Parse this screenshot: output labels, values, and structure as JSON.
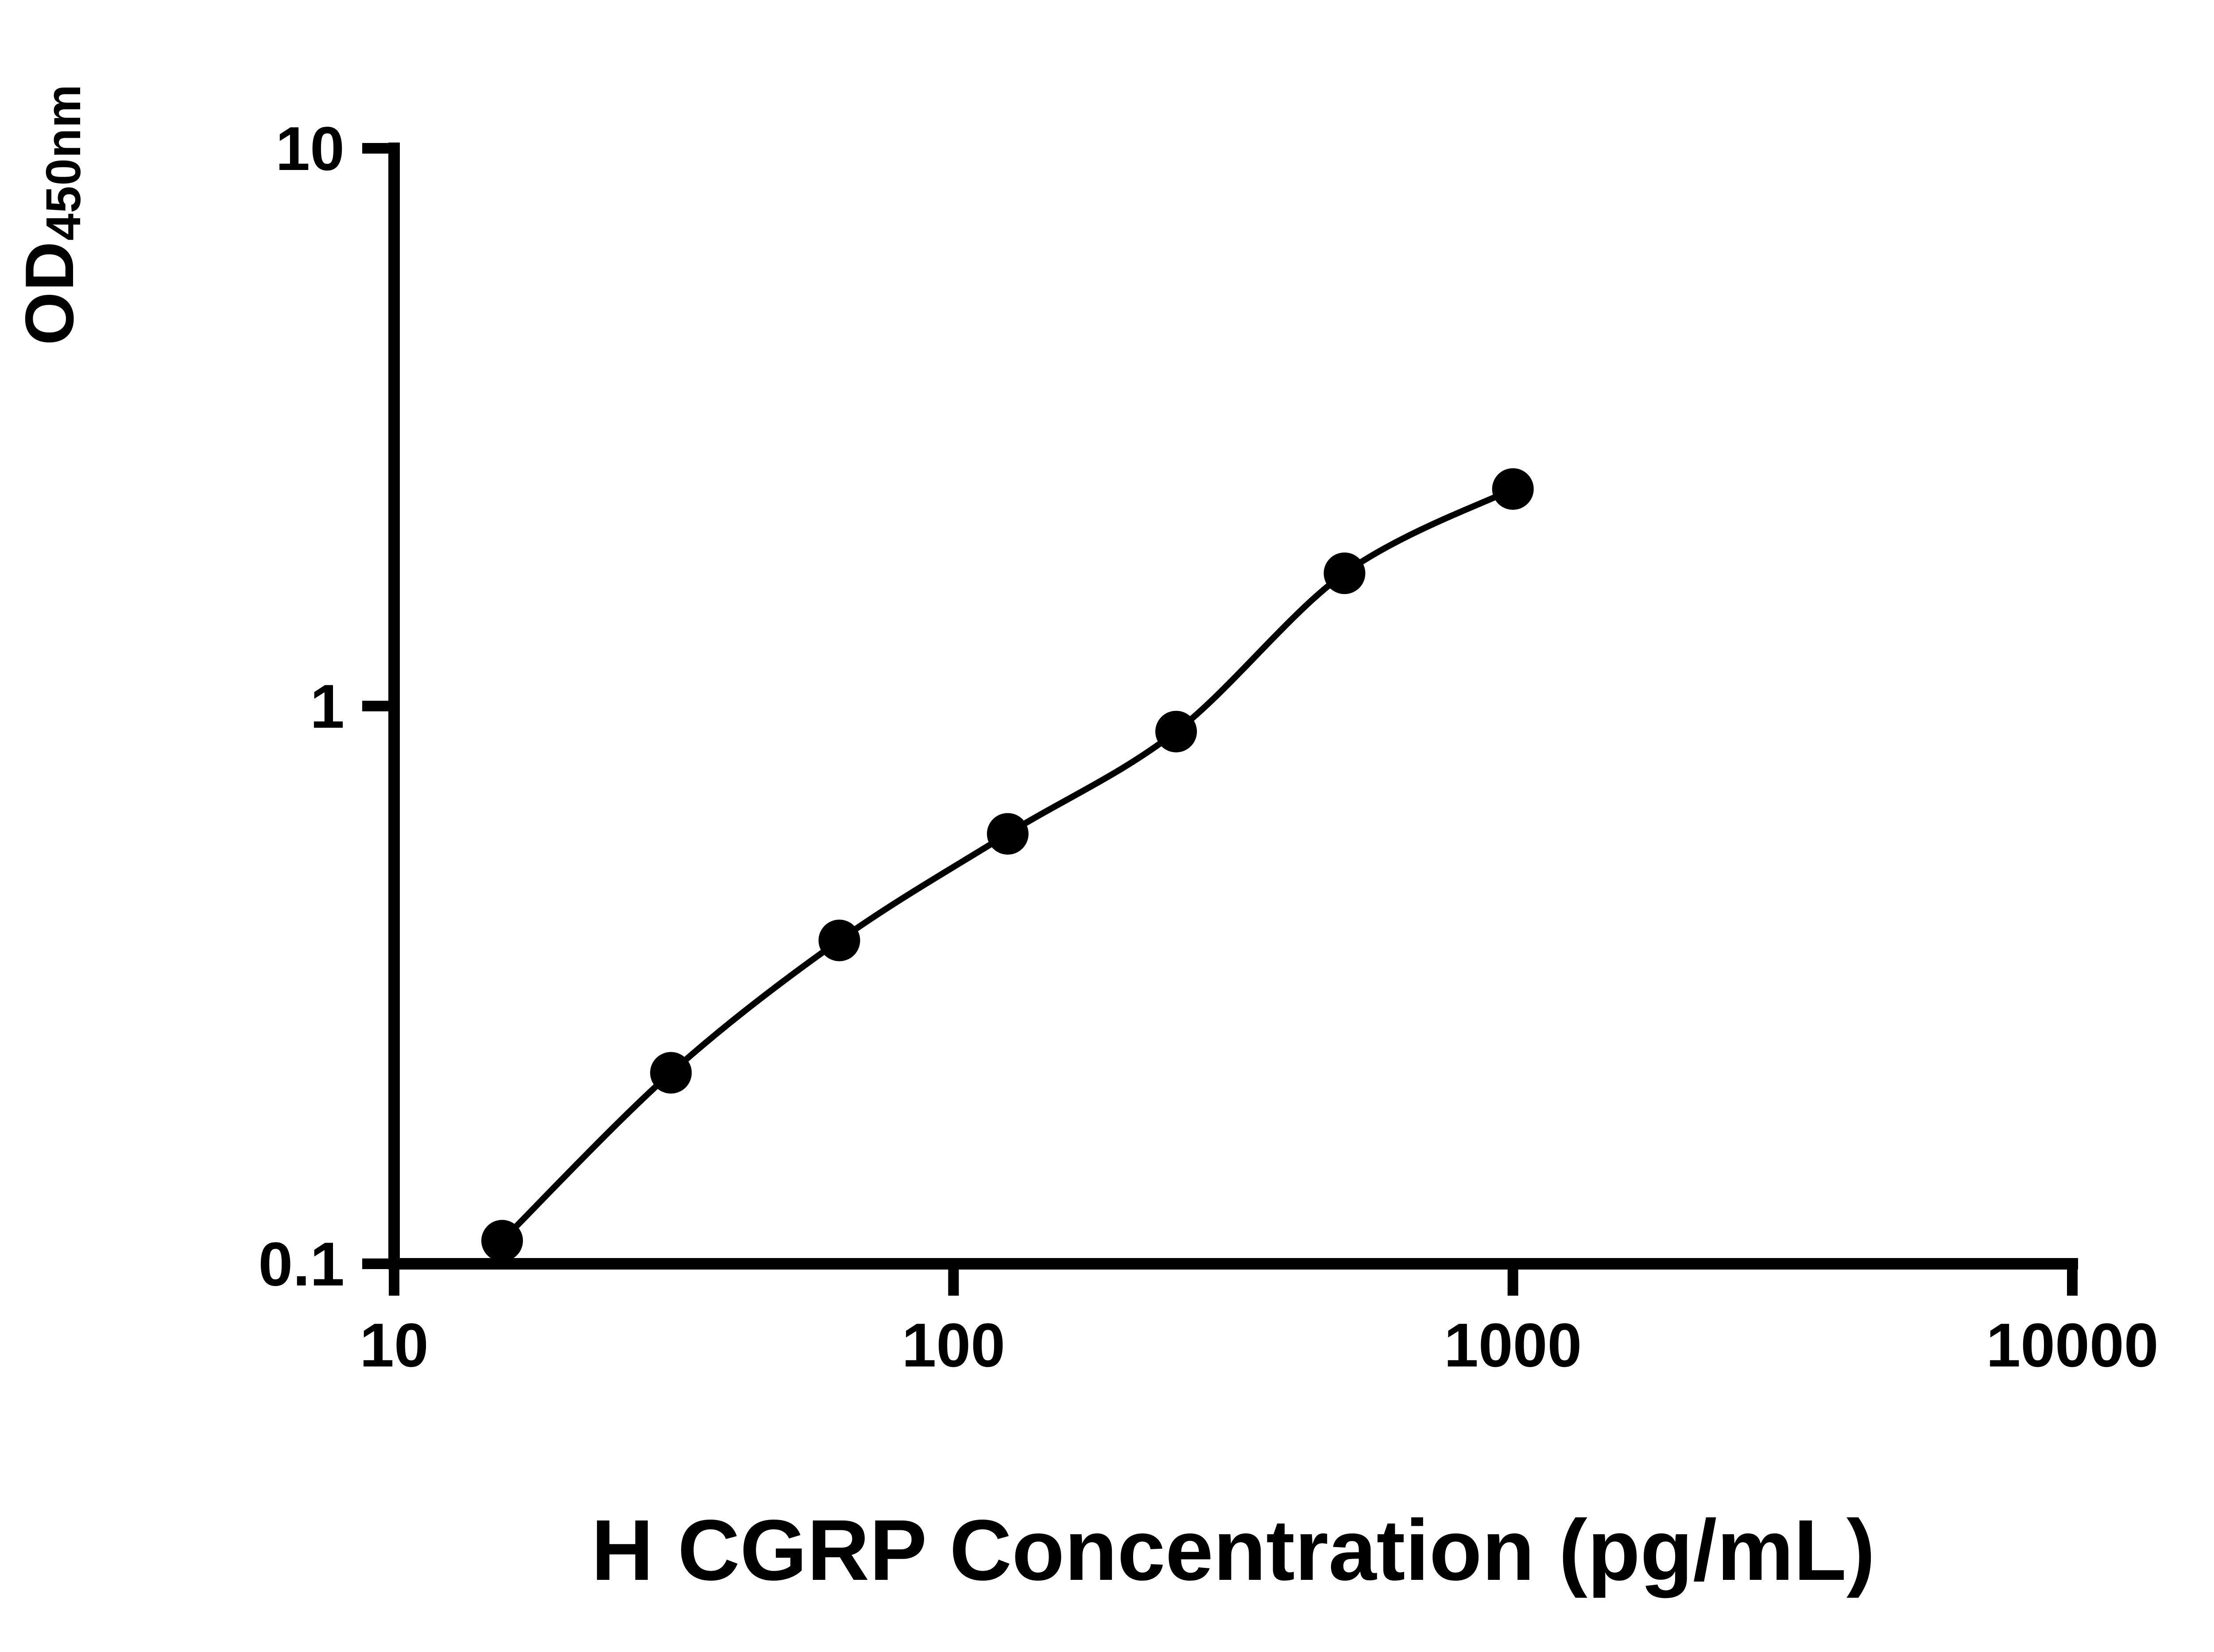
{
  "chart_data": {
    "type": "scatter",
    "title": "",
    "xlabel": "H CGRP Concentration (pg/mL)",
    "ylabel": "OD",
    "ylabel_sub": "450nm",
    "x_scale": "log",
    "y_scale": "log",
    "xlim": [
      10,
      10000
    ],
    "ylim": [
      0.1,
      10
    ],
    "x_ticks": [
      10,
      100,
      1000,
      10000
    ],
    "x_tick_labels": [
      "10",
      "100",
      "1000",
      "10000"
    ],
    "y_ticks": [
      0.1,
      1,
      10
    ],
    "y_tick_labels": [
      "0.1",
      "1",
      "10"
    ],
    "grid": false,
    "legend": "none",
    "marker": "filled-circle",
    "marker_color": "#000000",
    "line_color": "#000000",
    "axis_color": "#000000",
    "background_color": "#ffffff",
    "curve": "smooth fit through points",
    "points": [
      {
        "x": 15.6,
        "y": 0.11
      },
      {
        "x": 31.25,
        "y": 0.22
      },
      {
        "x": 62.5,
        "y": 0.38
      },
      {
        "x": 125,
        "y": 0.59
      },
      {
        "x": 250,
        "y": 0.9
      },
      {
        "x": 500,
        "y": 1.73
      },
      {
        "x": 1000,
        "y": 2.45
      }
    ]
  }
}
